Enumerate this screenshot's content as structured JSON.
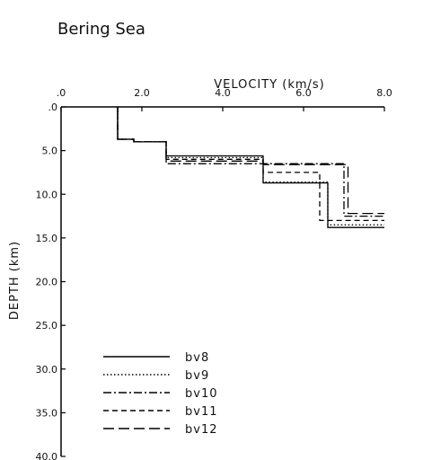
{
  "chart_data": {
    "type": "line",
    "title": "Bering Sea",
    "xlabel": "VELOCITY  (km/s)",
    "ylabel": "DEPTH (km)",
    "xlim": [
      0,
      8.0
    ],
    "ylim": [
      0,
      40.0
    ],
    "y_inverted": true,
    "x_axis_position": "top",
    "x_ticks": [
      ".0",
      "2.0",
      "4.0",
      "6.0",
      "8.0"
    ],
    "x_tick_values": [
      0,
      2,
      4,
      6,
      8
    ],
    "y_ticks": [
      ".0",
      "5.0",
      "10.0",
      "15.0",
      "20.0",
      "25.0",
      "30.0",
      "35.0",
      "40.0"
    ],
    "y_tick_values": [
      0,
      5,
      10,
      15,
      20,
      25,
      30,
      35,
      40
    ],
    "legend_position": "bottom-left",
    "series": [
      {
        "name": "bv8",
        "style": "solid",
        "points": [
          [
            1.4,
            0
          ],
          [
            1.4,
            3.7
          ],
          [
            1.8,
            3.7
          ],
          [
            1.8,
            4.0
          ],
          [
            2.6,
            4.0
          ],
          [
            2.6,
            5.6
          ],
          [
            5.0,
            5.6
          ],
          [
            5.0,
            8.7
          ],
          [
            6.6,
            8.7
          ],
          [
            6.6,
            13.8
          ],
          [
            8.0,
            13.8
          ]
        ]
      },
      {
        "name": "bv9",
        "style": "dotted",
        "points": [
          [
            1.4,
            0
          ],
          [
            1.4,
            3.7
          ],
          [
            1.8,
            3.7
          ],
          [
            1.8,
            4.0
          ],
          [
            2.6,
            4.0
          ],
          [
            2.6,
            5.8
          ],
          [
            5.0,
            5.8
          ],
          [
            5.0,
            8.6
          ],
          [
            6.6,
            8.6
          ],
          [
            6.6,
            13.5
          ],
          [
            8.0,
            13.5
          ]
        ]
      },
      {
        "name": "bv10",
        "style": "dashdot",
        "points": [
          [
            1.4,
            0
          ],
          [
            1.4,
            3.7
          ],
          [
            1.8,
            3.7
          ],
          [
            1.8,
            4.0
          ],
          [
            2.6,
            4.0
          ],
          [
            2.6,
            6.5
          ],
          [
            5.0,
            6.5
          ],
          [
            5.0,
            6.5
          ],
          [
            7.0,
            6.5
          ],
          [
            7.0,
            12.5
          ],
          [
            8.0,
            12.5
          ]
        ]
      },
      {
        "name": "bv11",
        "style": "dashed",
        "points": [
          [
            1.4,
            0
          ],
          [
            1.4,
            3.7
          ],
          [
            1.8,
            3.7
          ],
          [
            1.8,
            4.0
          ],
          [
            2.6,
            4.0
          ],
          [
            2.6,
            6.0
          ],
          [
            5.0,
            6.0
          ],
          [
            5.0,
            7.5
          ],
          [
            6.4,
            7.5
          ],
          [
            6.4,
            13.0
          ],
          [
            8.0,
            13.0
          ]
        ]
      },
      {
        "name": "bv12",
        "style": "longdash",
        "points": [
          [
            1.4,
            0
          ],
          [
            1.4,
            3.7
          ],
          [
            1.8,
            3.7
          ],
          [
            1.8,
            4.0
          ],
          [
            2.6,
            4.0
          ],
          [
            2.6,
            6.2
          ],
          [
            5.0,
            6.2
          ],
          [
            5.0,
            6.6
          ],
          [
            7.1,
            6.6
          ],
          [
            7.1,
            12.2
          ],
          [
            8.0,
            12.2
          ]
        ]
      }
    ]
  }
}
